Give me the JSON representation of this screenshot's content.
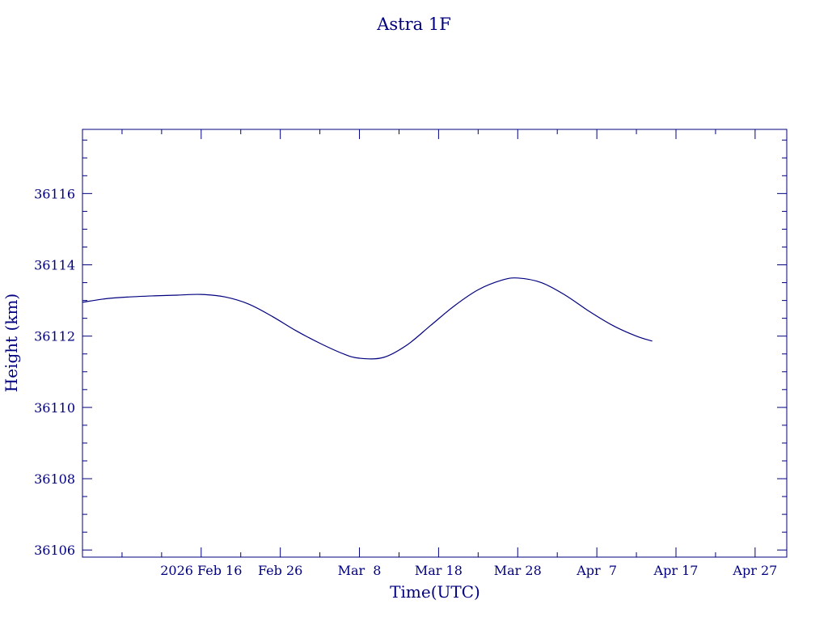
{
  "chart_data": {
    "type": "line",
    "title": "Astra 1F",
    "xlabel": "Time(UTC)",
    "ylabel": "Height (km)",
    "colors": {
      "axis": "#00007f",
      "line": "#00007f",
      "background": "#ffffff"
    },
    "grid": false,
    "xlim": [
      "2026-02-01",
      "2026-05-01"
    ],
    "ylim": [
      36105.8,
      36117.8
    ],
    "x_ticks": [
      {
        "date": "2026-02-16",
        "label": "2026 Feb 16"
      },
      {
        "date": "2026-02-26",
        "label": "Feb 26"
      },
      {
        "date": "2026-03-08",
        "label": "Mar  8"
      },
      {
        "date": "2026-03-18",
        "label": "Mar 18"
      },
      {
        "date": "2026-03-28",
        "label": "Mar 28"
      },
      {
        "date": "2026-04-07",
        "label": "Apr  7"
      },
      {
        "date": "2026-04-17",
        "label": "Apr 17"
      },
      {
        "date": "2026-04-27",
        "label": "Apr 27"
      }
    ],
    "y_ticks": [
      36106,
      36108,
      36110,
      36112,
      36114,
      36116
    ],
    "series": [
      {
        "x": [
          "2026-02-01",
          "2026-02-04",
          "2026-02-07",
          "2026-02-10",
          "2026-02-13",
          "2026-02-16",
          "2026-02-19",
          "2026-02-22",
          "2026-02-25",
          "2026-02-28",
          "2026-03-03",
          "2026-03-06",
          "2026-03-08",
          "2026-03-11",
          "2026-03-14",
          "2026-03-17",
          "2026-03-20",
          "2026-03-23",
          "2026-03-26",
          "2026-03-28",
          "2026-03-31",
          "2026-04-03",
          "2026-04-06",
          "2026-04-09",
          "2026-04-12",
          "2026-04-14"
        ],
        "values": [
          36112.95,
          36113.05,
          36113.1,
          36113.13,
          36113.15,
          36113.17,
          36113.1,
          36112.9,
          36112.55,
          36112.15,
          36111.8,
          36111.5,
          36111.38,
          36111.4,
          36111.75,
          36112.3,
          36112.85,
          36113.3,
          36113.57,
          36113.63,
          36113.5,
          36113.15,
          36112.7,
          36112.3,
          36112.0,
          36111.86
        ]
      }
    ]
  }
}
